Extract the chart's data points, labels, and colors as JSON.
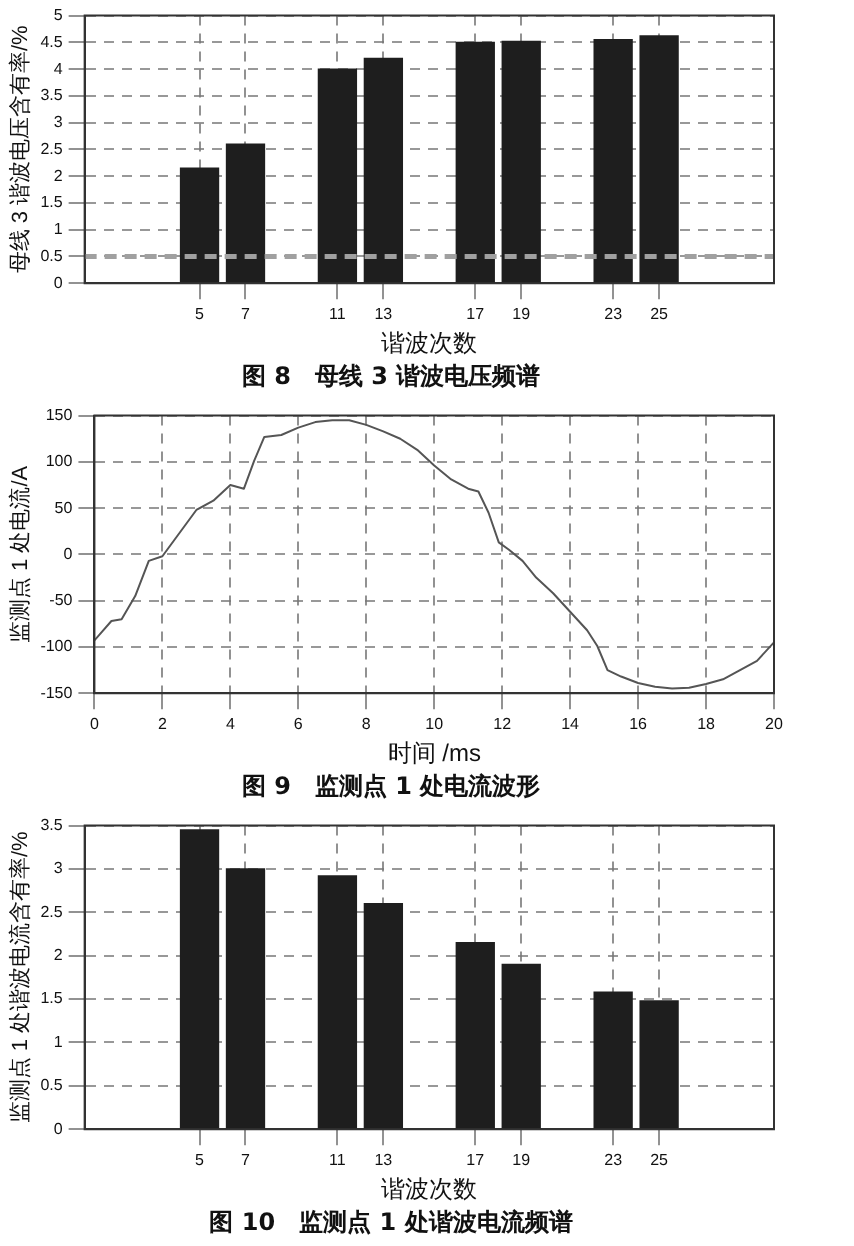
{
  "chart_data": [
    {
      "type": "bar",
      "title": "图 8　母线 3 谐波电压频谱",
      "xlabel": "谐波次数",
      "ylabel": "母线 3 谐波电压含有率/%",
      "color": "#1e1e1e",
      "x": [
        5,
        7,
        11,
        13,
        17,
        19,
        23,
        25
      ],
      "values": [
        2.15,
        2.6,
        4.0,
        4.2,
        4.5,
        4.52,
        4.55,
        4.62
      ],
      "xlim": [
        0,
        30
      ],
      "xticks": [
        5,
        7,
        11,
        13,
        17,
        19,
        23,
        25
      ],
      "ylim": [
        0,
        5
      ],
      "yticks": [
        0,
        0.5,
        1,
        1.5,
        2,
        2.5,
        3,
        3.5,
        4,
        4.5,
        5
      ],
      "grid": true,
      "ref_lines": [
        {
          "axis": "y",
          "value": 0.5,
          "color": "#a0a0a0",
          "line_style": "dashed"
        }
      ]
    },
    {
      "type": "line",
      "title": "图 9　监测点 1 处电流波形",
      "xlabel": "时间 /ms",
      "ylabel": "监测点 1 处电流/A",
      "color": "#555555",
      "line_style": "solid",
      "x": [
        0,
        0.5,
        0.8,
        1.2,
        1.6,
        2.0,
        2.4,
        3.0,
        3.5,
        4.0,
        4.4,
        4.7,
        5.0,
        5.5,
        6.0,
        6.5,
        7.0,
        7.5,
        8.0,
        8.5,
        9.0,
        9.5,
        10.0,
        10.5,
        11.0,
        11.3,
        11.6,
        11.9,
        12.2,
        12.6,
        13.0,
        13.5,
        14.0,
        14.5,
        14.8,
        15.1,
        15.5,
        16.0,
        16.5,
        17.0,
        17.5,
        18.0,
        18.5,
        19.0,
        19.5,
        20.0
      ],
      "values": [
        -93,
        -72,
        -70,
        -45,
        -7,
        -2,
        18,
        48,
        58,
        75,
        71,
        101,
        127,
        129,
        137,
        143,
        145,
        145,
        140,
        133,
        125,
        113,
        96,
        81,
        71,
        68,
        45,
        13,
        5,
        -7,
        -25,
        -42,
        -62,
        -82,
        -99,
        -125,
        -132,
        -139,
        -143,
        -145,
        -144,
        -140,
        -135,
        -125,
        -115,
        -95
      ],
      "xlim": [
        0,
        20
      ],
      "xticks": [
        0,
        2,
        4,
        6,
        8,
        10,
        12,
        14,
        16,
        18,
        20
      ],
      "ylim": [
        -150,
        150
      ],
      "yticks": [
        -150,
        -100,
        -50,
        0,
        50,
        100,
        150
      ],
      "grid": true
    },
    {
      "type": "bar",
      "title": "图 10　监测点 1 处谐波电流频谱",
      "xlabel": "谐波次数",
      "ylabel": "监测点 1 处谐波电流含有率/%",
      "color": "#1e1e1e",
      "x": [
        5,
        7,
        11,
        13,
        17,
        19,
        23,
        25
      ],
      "values": [
        3.45,
        3.0,
        2.92,
        2.6,
        2.15,
        1.9,
        1.58,
        1.48
      ],
      "xlim": [
        0,
        30
      ],
      "xticks": [
        5,
        7,
        11,
        13,
        17,
        19,
        23,
        25
      ],
      "ylim": [
        0,
        3.5
      ],
      "yticks": [
        0,
        0.5,
        1,
        1.5,
        2,
        2.5,
        3,
        3.5
      ],
      "grid": true
    }
  ]
}
